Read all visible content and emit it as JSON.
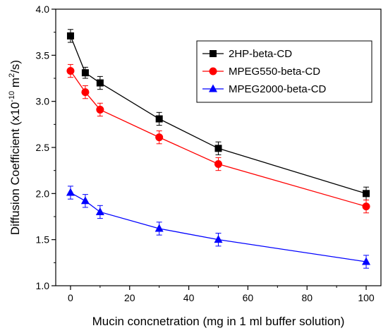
{
  "chart_data": {
    "type": "line",
    "title": "",
    "xlabel": "Mucin concnetration (mg in 1 ml buffer solution)",
    "ylabel_main": "Diffusion Coefficient (x10",
    "ylabel_exp": "-10",
    "ylabel_unit": " m",
    "ylabel_unit_exp": "2",
    "ylabel_end": "/s)",
    "xlim": [
      -5,
      105
    ],
    "ylim": [
      1.0,
      4.0
    ],
    "x_ticks": [
      0,
      20,
      40,
      60,
      80,
      100
    ],
    "y_ticks": [
      1.0,
      1.5,
      2.0,
      2.5,
      3.0,
      3.5,
      4.0
    ],
    "x_tick_labels": [
      "0",
      "20",
      "40",
      "60",
      "80",
      "100"
    ],
    "y_tick_labels": [
      "1.0",
      "1.5",
      "2.0",
      "2.5",
      "3.0",
      "3.5",
      "4.0"
    ],
    "legend_position": "top-right",
    "grid": false,
    "x": [
      0,
      5,
      10,
      30,
      50,
      100
    ],
    "series": [
      {
        "name": "2HP-beta-CD",
        "color": "#000000",
        "marker": "square",
        "values": [
          3.71,
          3.31,
          3.2,
          2.81,
          2.49,
          2.0
        ],
        "errors": [
          0.07,
          0.06,
          0.07,
          0.07,
          0.07,
          0.07
        ]
      },
      {
        "name": "MPEG550-beta-CD",
        "color": "#ff0000",
        "marker": "circle",
        "values": [
          3.33,
          3.1,
          2.91,
          2.61,
          2.32,
          1.86
        ],
        "errors": [
          0.07,
          0.07,
          0.07,
          0.07,
          0.07,
          0.07
        ]
      },
      {
        "name": "MPEG2000-beta-CD",
        "color": "#0000ff",
        "marker": "triangle",
        "values": [
          2.01,
          1.92,
          1.8,
          1.62,
          1.5,
          1.26
        ],
        "errors": [
          0.07,
          0.07,
          0.07,
          0.07,
          0.07,
          0.07
        ]
      }
    ]
  }
}
